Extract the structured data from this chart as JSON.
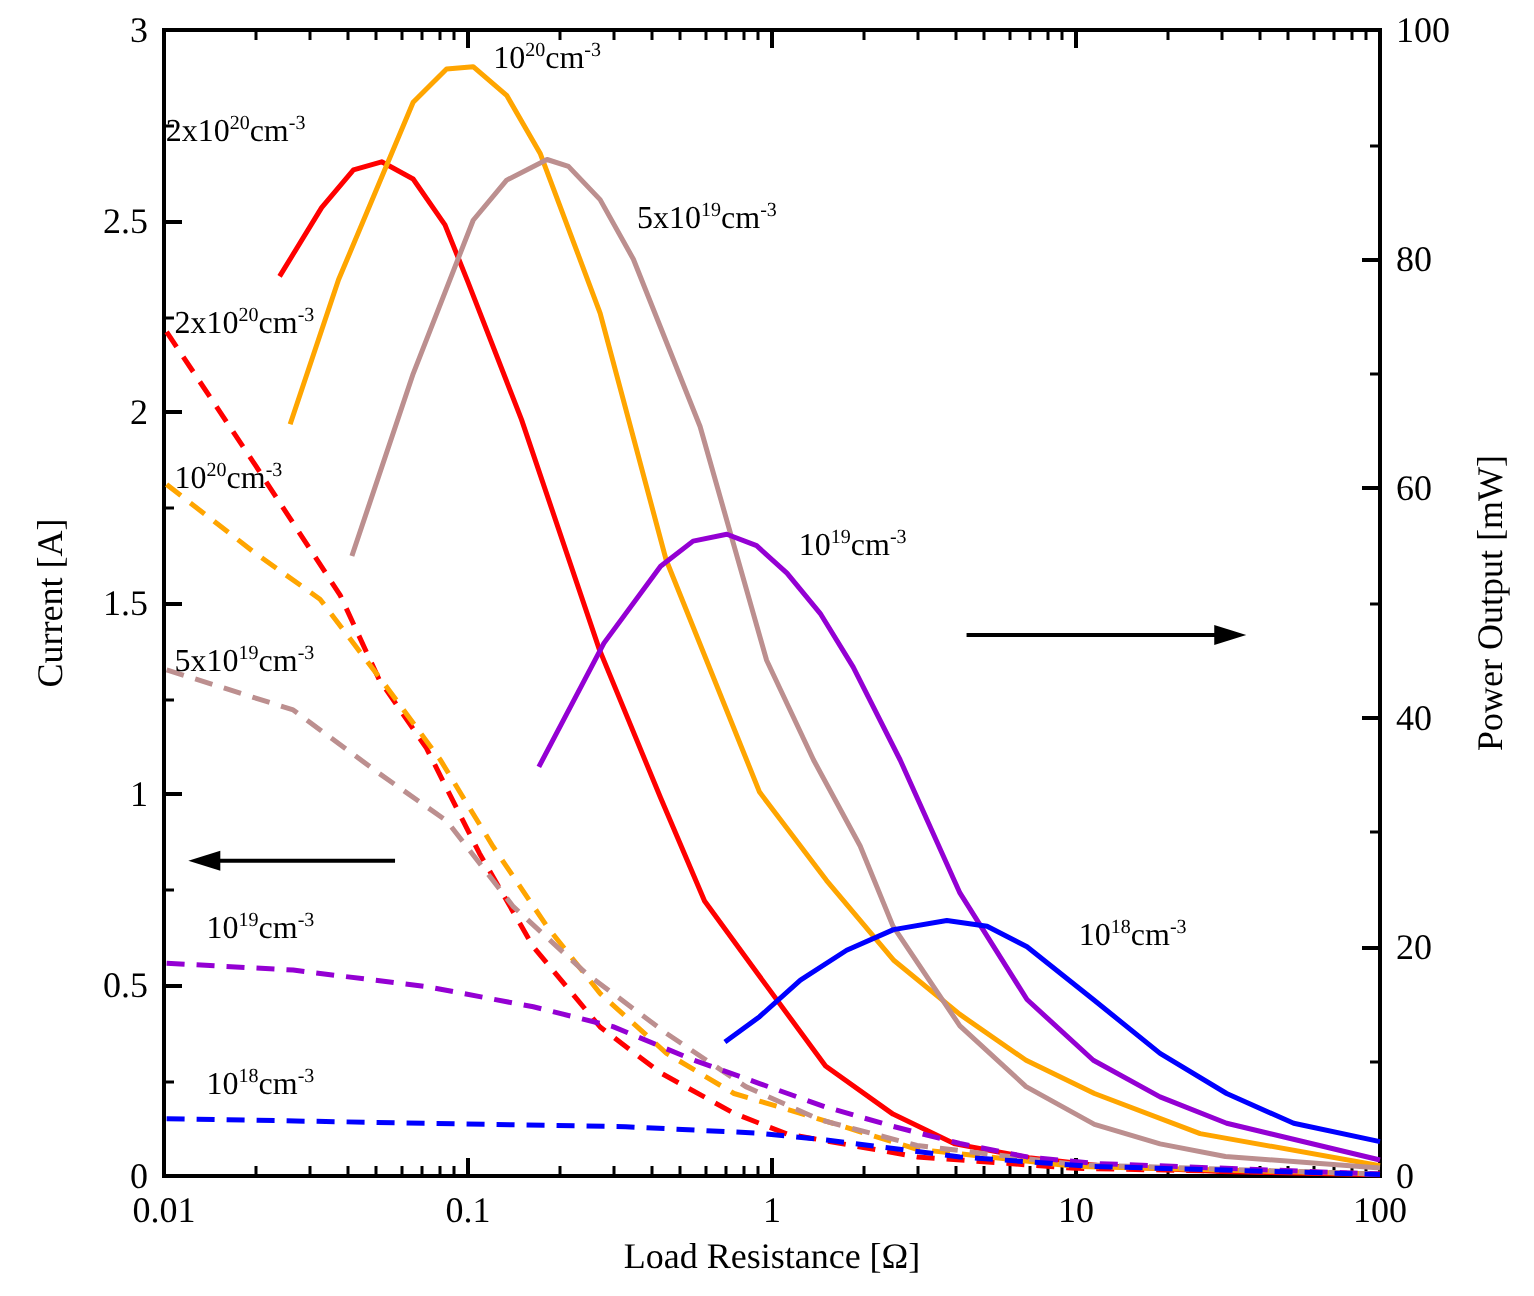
{
  "chart_data": {
    "type": "line",
    "xlabel": "Load Resistance [Ω]",
    "ylabel": "Current [A]",
    "y2label": "Power Output [mW]",
    "log": "x",
    "xlim": [
      0.01,
      100
    ],
    "xticks": [
      0.01,
      0.1,
      1,
      10,
      100
    ],
    "ylim": [
      0,
      3
    ],
    "yticks": [
      0,
      0.5,
      1,
      1.5,
      2,
      2.5,
      3
    ],
    "y2lim": [
      0,
      100
    ],
    "y2ticks": [
      0,
      20,
      40,
      60,
      80,
      100
    ],
    "grid": false,
    "marker": "none",
    "series": [
      {
        "name": "2x10$^{20}$cm$^{-3}$",
        "color": "#ff0000",
        "axis": "y2",
        "line_style": "solid",
        "x": [
          0.024,
          0.033,
          0.042,
          0.052,
          0.066,
          0.084,
          0.1,
          0.15,
          0.27,
          0.43,
          0.6,
          0.9,
          1.5,
          2.5,
          4,
          7,
          12,
          30,
          100
        ],
        "values": [
          78.5,
          84.5,
          87.8,
          88.5,
          87,
          83,
          78,
          66,
          46,
          33,
          24,
          17.6,
          9.6,
          5.4,
          2.8,
          1.6,
          0.9,
          0.4,
          0.1
        ]
      },
      {
        "name": "10$^{20}$cm$^{-3}$",
        "color": "#ffa500",
        "axis": "y2",
        "line_style": "solid",
        "x": [
          0.026,
          0.0375,
          0.066,
          0.085,
          0.104,
          0.134,
          0.173,
          0.272,
          0.448,
          0.91,
          1.51,
          2.52,
          4.15,
          6.85,
          11.5,
          25.6,
          100
        ],
        "values": [
          65.6,
          78.2,
          93.7,
          96.6,
          96.8,
          94.3,
          89.2,
          75.3,
          53.8,
          33.5,
          25.8,
          18.8,
          14.1,
          10.1,
          7.2,
          3.7,
          0.9
        ]
      },
      {
        "name": "5x10$^{19}$cm$^{-3}$",
        "color": "#bc8f8f",
        "axis": "y2",
        "line_style": "solid",
        "x": [
          0.0415,
          0.066,
          0.104,
          0.134,
          0.182,
          0.214,
          0.272,
          0.35,
          0.58,
          0.96,
          1.37,
          1.95,
          2.5,
          4.15,
          6.85,
          11.5,
          18.9,
          31,
          100
        ],
        "values": [
          54.1,
          70,
          83.4,
          86.9,
          88.7,
          88.1,
          85.2,
          80,
          65.4,
          45,
          36.3,
          28.8,
          21.8,
          13.1,
          7.8,
          4.5,
          2.8,
          1.7,
          0.7
        ]
      },
      {
        "name": "10$^{19}$cm$^{-3}$",
        "color": "#9400d3",
        "axis": "y2",
        "line_style": "solid",
        "x": [
          0.171,
          0.28,
          0.43,
          0.55,
          0.71,
          0.89,
          1.12,
          1.44,
          1.85,
          2.64,
          4.15,
          6.9,
          11.4,
          18.9,
          31.3,
          100
        ],
        "values": [
          35.7,
          46.5,
          53.2,
          55.4,
          56,
          55,
          52.6,
          49.1,
          44.4,
          36.3,
          24.7,
          15.4,
          10.1,
          6.9,
          4.6,
          1.4
        ]
      },
      {
        "name": "10$^{18}$cm$^{-3}$",
        "color": "#0000ff",
        "axis": "y2",
        "line_style": "solid",
        "x": [
          0.7,
          0.91,
          1.24,
          1.76,
          2.51,
          3.76,
          5.1,
          6.9,
          11.4,
          18.9,
          31.3,
          52,
          100
        ],
        "values": [
          11.7,
          13.9,
          17.1,
          19.7,
          21.5,
          22.3,
          21.8,
          20,
          15.4,
          10.7,
          7.2,
          4.6,
          3
        ]
      },
      {
        "name": "2x10$^{20}$cm$^{-3}$",
        "color": "#ff0000",
        "line_style": "dashed",
        "x": [
          0.0102,
          0.02,
          0.038,
          0.051,
          0.073,
          0.109,
          0.164,
          0.272,
          0.43,
          0.75,
          1.12,
          3,
          10,
          100
        ],
        "values": [
          2.21,
          1.86,
          1.52,
          1.3,
          1.12,
          0.845,
          0.6,
          0.39,
          0.27,
          0.164,
          0.11,
          0.05,
          0.02,
          0.005
        ]
      },
      {
        "name": "10$^{20}$cm$^{-3}$",
        "color": "#ffa500",
        "line_style": "dashed",
        "x": [
          0.0102,
          0.02,
          0.0326,
          0.054,
          0.081,
          0.121,
          0.182,
          0.272,
          0.45,
          0.75,
          1.24,
          3,
          10,
          100
        ],
        "values": [
          1.81,
          1.63,
          1.51,
          1.28,
          1.09,
          0.862,
          0.653,
          0.478,
          0.321,
          0.216,
          0.164,
          0.07,
          0.025,
          0.005
        ]
      },
      {
        "name": "5x10$^{19}$cm$^{-3}$",
        "color": "#bc8f8f",
        "line_style": "dashed",
        "x": [
          0.0102,
          0.0266,
          0.051,
          0.085,
          0.141,
          0.245,
          0.45,
          0.82,
          1.44,
          3,
          10,
          100
        ],
        "values": [
          1.325,
          1.22,
          1.054,
          0.93,
          0.705,
          0.53,
          0.373,
          0.234,
          0.147,
          0.08,
          0.03,
          0.005
        ]
      },
      {
        "name": "10$^{19}$cm$^{-3}$",
        "color": "#9400d3",
        "line_style": "dashed",
        "x": [
          0.0102,
          0.0266,
          0.073,
          0.164,
          0.3,
          0.55,
          0.91,
          1.51,
          2.5,
          4.15,
          6.9,
          11.4,
          100
        ],
        "values": [
          0.557,
          0.539,
          0.496,
          0.443,
          0.391,
          0.304,
          0.242,
          0.18,
          0.13,
          0.085,
          0.05,
          0.033,
          0.005
        ]
      },
      {
        "name": "10$^{18}$cm$^{-3}$",
        "color": "#0000ff",
        "line_style": "dashed",
        "x": [
          0.0102,
          0.073,
          0.33,
          0.91,
          1.51,
          4.15,
          11.4,
          100
        ],
        "values": [
          0.15,
          0.138,
          0.129,
          0.112,
          0.094,
          0.05,
          0.025,
          0.004
        ]
      }
    ]
  }
}
